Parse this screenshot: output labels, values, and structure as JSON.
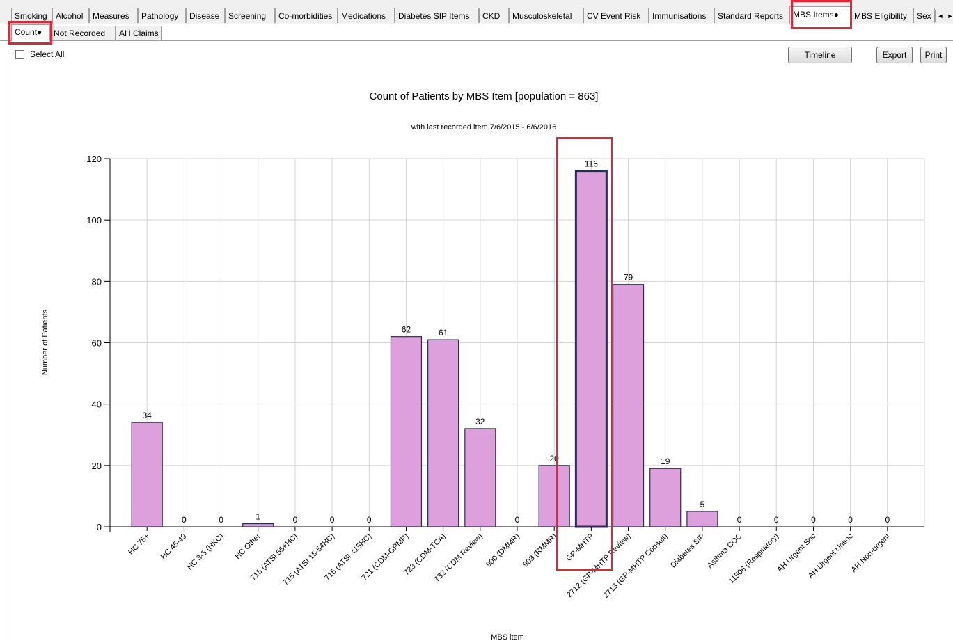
{
  "tabs": [
    "Smoking",
    "Alcohol",
    "Measures",
    "Pathology",
    "Disease",
    "Screening",
    "Co-morbidities",
    "Medications",
    "Diabetes SIP Items",
    "CKD",
    "Musculoskeletal",
    "CV Event Risk",
    "Immunisations",
    "Standard Reports",
    "MBS Items●",
    "MBS Eligibility",
    "Sex"
  ],
  "active_tab": "MBS Items●",
  "subtabs": [
    "Count●",
    "Not Recorded",
    "AH Claims"
  ],
  "select_all_label": "Select All",
  "buttons": {
    "timeline": "Timeline",
    "export": "Export",
    "print": "Print"
  },
  "colors": {
    "bar_fill": "#dda0dd",
    "bar_stroke": "#2a2a55",
    "highlight": "#e32636",
    "grid": "#d3d3d3"
  },
  "icons": {
    "scroll_left": "◄",
    "scroll_right": "►"
  },
  "chart_data": {
    "type": "bar",
    "title": "Count of Patients by MBS Item [population = 863]",
    "subtitle": "with last recorded item 7/6/2015 - 6/6/2016",
    "xlabel": "MBS item",
    "ylabel": "Number of Patients",
    "ylim": [
      0,
      120
    ],
    "yticks": [
      0,
      20,
      40,
      60,
      80,
      100,
      120
    ],
    "grid": true,
    "categories": [
      "HC 75+",
      "HC 45-49",
      "HC 3-5 (HKC)",
      "HC Other",
      "715 (ATSI 55+HC)",
      "715 (ATSI 15-54HC)",
      "715 (ATSI <15HC)",
      "721 (CDM-GPMP)",
      "723 (CDM-TCA)",
      "732 (CDM Review)",
      "900 (DMMR)",
      "903 (RMMR)",
      "GP-MHTP",
      "2712 (GP-MHTP Review)",
      "2713 (GP-MHTP Consult)",
      "Diabetes SIP",
      "Asthma COC",
      "11506 (Respiratory)",
      "AH Urgent Soc",
      "AH Urgent Unsoc",
      "AH Non-urgent"
    ],
    "values": [
      34,
      0,
      0,
      1,
      0,
      0,
      0,
      62,
      61,
      32,
      0,
      20,
      116,
      79,
      19,
      5,
      0,
      0,
      0,
      0,
      0
    ],
    "highlighted_category": "GP-MHTP"
  }
}
